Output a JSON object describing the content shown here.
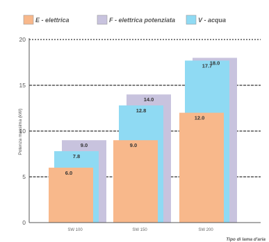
{
  "chart_data": {
    "type": "bar",
    "categories": [
      "SW 100",
      "SW 150",
      "SW 200"
    ],
    "series": [
      {
        "name": "E - elettrica",
        "color": "#f8b88b",
        "values": [
          6.0,
          9.0,
          12.0
        ]
      },
      {
        "name": "V - acqua",
        "color": "#8fdaf3",
        "values": [
          7.8,
          12.8,
          17.7
        ]
      },
      {
        "name": "F - elettrica potenziata",
        "color": "#c8c3de",
        "values": [
          9.0,
          14.0,
          18.0
        ]
      }
    ],
    "legend_order": [
      "E - elettrica",
      "F - elettrica potenziata",
      "V - acqua"
    ],
    "legend_position": "top",
    "ylabel": "Potenza massima (kW)",
    "xlabel": "Tipo di lama d'aria",
    "ylim": [
      0,
      20
    ],
    "yticks": [
      0,
      5,
      10,
      15,
      20
    ],
    "grid": true
  }
}
